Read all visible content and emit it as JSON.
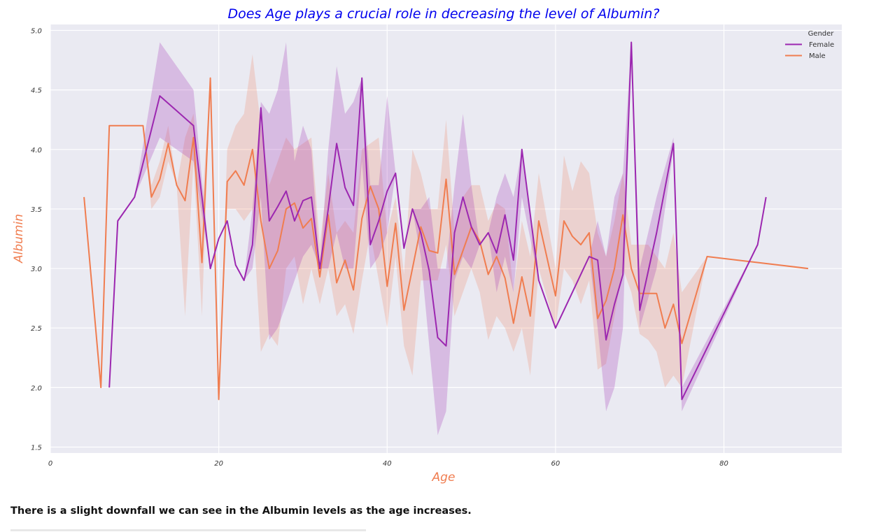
{
  "chart_data": {
    "type": "line",
    "title": "Does Age plays a crucial role in decreasing the level of Albumin?",
    "xlabel": "Age",
    "ylabel": "Albumin",
    "xlim": [
      0,
      94
    ],
    "ylim": [
      1.45,
      5.05
    ],
    "xticks": [
      0,
      20,
      40,
      60,
      80
    ],
    "yticks": [
      1.5,
      2.0,
      2.5,
      3.0,
      3.5,
      4.0,
      4.5,
      5.0
    ],
    "grid": true,
    "legend": {
      "title": "Gender",
      "placement": "top-right"
    },
    "series": [
      {
        "name": "Female",
        "color": "#9c27b0",
        "x": [
          7,
          8,
          10,
          13,
          17,
          19,
          20,
          21,
          22,
          23,
          24,
          25,
          26,
          27,
          28,
          29,
          30,
          31,
          32,
          33,
          34,
          35,
          36,
          37,
          38,
          39,
          40,
          41,
          42,
          43,
          44,
          45,
          46,
          47,
          48,
          49,
          50,
          51,
          52,
          53,
          54,
          55,
          56,
          58,
          60,
          62,
          64,
          65,
          66,
          67,
          68,
          69,
          70,
          72,
          74,
          75,
          84,
          85
        ],
        "y": [
          2.0,
          3.4,
          3.6,
          4.45,
          4.2,
          3.0,
          3.25,
          3.4,
          3.03,
          2.9,
          3.2,
          4.35,
          3.4,
          3.52,
          3.65,
          3.4,
          3.57,
          3.6,
          3.0,
          3.5,
          4.05,
          3.68,
          3.53,
          4.6,
          3.2,
          3.4,
          3.65,
          3.8,
          3.17,
          3.5,
          3.3,
          2.98,
          2.42,
          2.35,
          3.3,
          3.6,
          3.35,
          3.2,
          3.3,
          3.13,
          3.45,
          3.07,
          4.0,
          2.9,
          2.5,
          2.8,
          3.1,
          3.07,
          2.4,
          2.7,
          2.95,
          4.9,
          2.65,
          3.3,
          4.05,
          1.9,
          3.2,
          3.6
        ],
        "ci_lower": [
          2.0,
          3.4,
          3.6,
          4.1,
          3.9,
          3.0,
          3.25,
          3.4,
          3.03,
          2.9,
          3.0,
          3.6,
          2.4,
          2.5,
          2.7,
          2.9,
          3.1,
          3.2,
          3.0,
          3.0,
          3.3,
          3.0,
          3.0,
          3.9,
          3.0,
          3.1,
          3.3,
          3.8,
          3.17,
          3.5,
          3.1,
          2.35,
          1.6,
          1.8,
          2.9,
          3.1,
          3.0,
          3.2,
          3.3,
          2.8,
          3.1,
          2.8,
          3.6,
          2.9,
          2.5,
          2.8,
          3.1,
          2.5,
          1.8,
          2.0,
          2.5,
          4.9,
          2.5,
          3.0,
          4.0,
          1.8,
          3.2,
          3.6
        ],
        "ci_upper": [
          2.0,
          3.4,
          3.6,
          4.9,
          4.5,
          3.0,
          3.25,
          3.4,
          3.03,
          2.9,
          3.5,
          4.4,
          4.3,
          4.5,
          4.9,
          3.9,
          4.2,
          4.0,
          3.0,
          4.0,
          4.7,
          4.3,
          4.4,
          4.6,
          3.7,
          3.7,
          4.45,
          3.8,
          3.17,
          3.5,
          3.5,
          3.6,
          3.0,
          3.0,
          3.7,
          4.3,
          3.7,
          3.2,
          3.3,
          3.6,
          3.8,
          3.6,
          4.0,
          2.9,
          2.5,
          2.8,
          3.1,
          3.4,
          3.1,
          3.6,
          3.8,
          4.9,
          3.0,
          3.6,
          4.1,
          2.0,
          3.2,
          3.6
        ]
      },
      {
        "name": "Male",
        "color": "#f07d50",
        "x": [
          4,
          6,
          7,
          11,
          12,
          13,
          14,
          15,
          16,
          17,
          18,
          19,
          20,
          21,
          22,
          23,
          24,
          25,
          26,
          27,
          28,
          29,
          30,
          31,
          32,
          33,
          34,
          35,
          36,
          37,
          38,
          39,
          40,
          41,
          42,
          43,
          44,
          45,
          46,
          47,
          48,
          49,
          50,
          51,
          52,
          53,
          54,
          55,
          56,
          57,
          58,
          60,
          61,
          62,
          63,
          64,
          65,
          66,
          67,
          68,
          69,
          70,
          71,
          72,
          73,
          74,
          75,
          78,
          90
        ],
        "y": [
          3.6,
          2.0,
          4.2,
          4.2,
          3.6,
          3.75,
          4.05,
          3.7,
          3.57,
          4.1,
          3.05,
          4.6,
          1.9,
          3.73,
          3.82,
          3.7,
          4.0,
          3.4,
          3.0,
          3.15,
          3.5,
          3.55,
          3.34,
          3.42,
          2.93,
          3.45,
          2.88,
          3.07,
          2.82,
          3.42,
          3.69,
          3.5,
          2.85,
          3.38,
          2.65,
          3.0,
          3.35,
          3.15,
          3.13,
          3.75,
          2.95,
          3.15,
          3.35,
          3.23,
          2.95,
          3.1,
          2.92,
          2.54,
          2.93,
          2.6,
          3.4,
          2.77,
          3.4,
          3.27,
          3.2,
          3.3,
          2.58,
          2.73,
          3.0,
          3.45,
          3.0,
          2.79,
          2.79,
          2.79,
          2.5,
          2.7,
          2.37,
          3.1,
          3.0
        ],
        "ci_lower": [
          3.6,
          2.0,
          4.2,
          4.2,
          3.5,
          3.6,
          3.9,
          3.7,
          2.6,
          3.9,
          2.6,
          4.6,
          1.9,
          3.5,
          3.5,
          3.4,
          3.5,
          2.3,
          2.45,
          2.35,
          3.0,
          3.1,
          2.7,
          3.0,
          2.7,
          3.0,
          2.6,
          2.7,
          2.45,
          2.9,
          3.3,
          2.9,
          2.5,
          3.1,
          2.35,
          2.1,
          2.9,
          2.9,
          2.9,
          3.2,
          2.6,
          2.8,
          3.0,
          2.8,
          2.4,
          2.6,
          2.5,
          2.3,
          2.5,
          2.1,
          3.0,
          2.5,
          3.0,
          2.9,
          2.7,
          2.9,
          2.15,
          2.2,
          2.6,
          3.0,
          2.8,
          2.45,
          2.4,
          2.3,
          2.0,
          2.1,
          2.0,
          3.1,
          3.0
        ],
        "ci_upper": [
          3.6,
          2.0,
          4.2,
          4.2,
          3.7,
          3.9,
          4.2,
          3.7,
          4.1,
          4.3,
          3.5,
          4.6,
          1.9,
          4.0,
          4.2,
          4.3,
          4.8,
          4.2,
          3.7,
          3.9,
          4.1,
          4.0,
          4.05,
          4.1,
          3.2,
          3.8,
          3.3,
          3.4,
          3.3,
          4.0,
          4.05,
          4.1,
          3.3,
          3.6,
          2.95,
          4.0,
          3.8,
          3.5,
          3.5,
          4.25,
          3.3,
          3.6,
          3.7,
          3.7,
          3.4,
          3.55,
          3.5,
          2.8,
          3.4,
          3.1,
          3.8,
          3.0,
          3.95,
          3.65,
          3.9,
          3.8,
          3.3,
          3.1,
          3.4,
          3.8,
          3.2,
          3.2,
          3.2,
          3.1,
          3.0,
          3.3,
          2.8,
          3.1,
          3.0
        ]
      }
    ]
  },
  "caption": "There is a slight downfall we can see in the Albumin levels as the age increases."
}
